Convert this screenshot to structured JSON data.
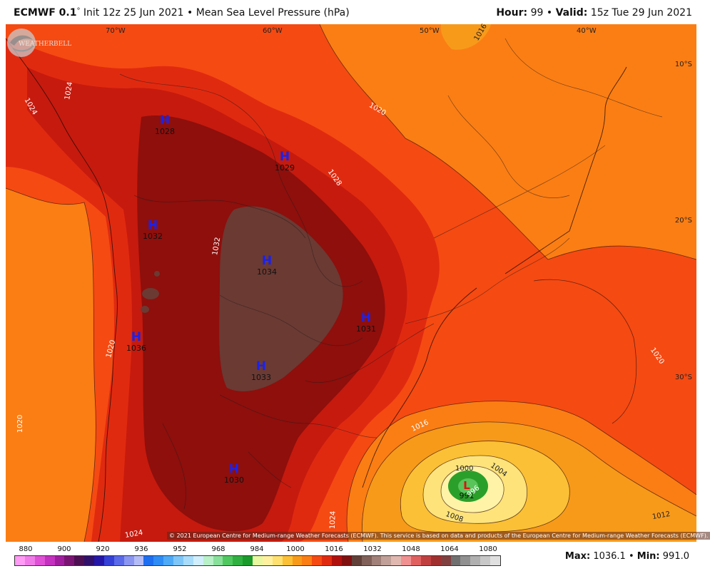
{
  "header": {
    "model": "ECMWF 0.1",
    "init": "Init 12z 25 Jun 2021",
    "product": "Mean Sea Level Pressure (hPa)",
    "hour_label": "Hour:",
    "hour_value": "99",
    "valid_label": "Valid:",
    "valid_value": "15z Tue 29 Jun 2021"
  },
  "map": {
    "lon_labels": [
      "70°W",
      "60°W",
      "50°W",
      "40°W"
    ],
    "lat_labels": [
      "10°S",
      "20°S",
      "30°S"
    ],
    "highs": [
      {
        "symbol": "H",
        "value": "1028"
      },
      {
        "symbol": "H",
        "value": "1029"
      },
      {
        "symbol": "H",
        "value": "1032"
      },
      {
        "symbol": "H",
        "value": "1034"
      },
      {
        "symbol": "H",
        "value": "1031"
      },
      {
        "symbol": "H",
        "value": "1036"
      },
      {
        "symbol": "H",
        "value": "1033"
      },
      {
        "symbol": "H",
        "value": "1030"
      }
    ],
    "low": {
      "symbol": "L",
      "value": "991"
    },
    "contour_labels": [
      "1016",
      "1024",
      "1024",
      "1020",
      "1028",
      "1032",
      "1020",
      "1020",
      "1020",
      "1016",
      "1000",
      "1004",
      "1008",
      "996",
      "1012",
      "1024",
      "1024"
    ],
    "copyright": "© 2021 European Centre for Medium-range Weather Forecasts (ECMWF). This service is based on data and products of the European Centre for Medium-range Weather Forecasts (ECMWF).",
    "logo_text": "WEATHERBELL",
    "colors": {
      "p1012": "#f79a1a",
      "p1016": "#fb7e14",
      "p1020": "#f54a12",
      "p1024": "#e02a10",
      "p1028": "#c61a0e",
      "p1032": "#8e0f0c",
      "p1034": "#6a3a33",
      "p1008": "#fbc035",
      "p1004": "#fde37a",
      "p1000": "#fff3a8",
      "p996": "#2aa02a",
      "p992": "#58c45a"
    }
  },
  "colorbar": {
    "labels": [
      "880",
      "900",
      "920",
      "936",
      "952",
      "968",
      "984",
      "1000",
      "1016",
      "1032",
      "1048",
      "1064",
      "1080"
    ],
    "colors": [
      "#ff9af5",
      "#f07be8",
      "#e050d6",
      "#c430bf",
      "#a01e9e",
      "#7a1472",
      "#4e0e52",
      "#30106a",
      "#2416a6",
      "#3440d6",
      "#5a6ae8",
      "#8a96f0",
      "#b4bcf6",
      "#1e6ef0",
      "#2e8cf4",
      "#4eaaf6",
      "#7ec6f8",
      "#a8dcfa",
      "#d0eefc",
      "#b8f0c8",
      "#88e09a",
      "#50c860",
      "#30b040",
      "#1a9a2a",
      "#e8f8a0",
      "#fff0a0",
      "#fde070",
      "#fbc035",
      "#f79a1a",
      "#fb7e14",
      "#f54a12",
      "#e02a10",
      "#b0100c",
      "#801010",
      "#604038",
      "#806058",
      "#a08078",
      "#c0a098",
      "#e0b8b0",
      "#f09090",
      "#e06060",
      "#c04040",
      "#a03030",
      "#804040",
      "#707070",
      "#909090",
      "#b0b0b0",
      "#c8c8c8",
      "#e0e0e0"
    ],
    "max_label": "Max:",
    "max_value": "1036.1",
    "min_label": "Min:",
    "min_value": "991.0"
  }
}
